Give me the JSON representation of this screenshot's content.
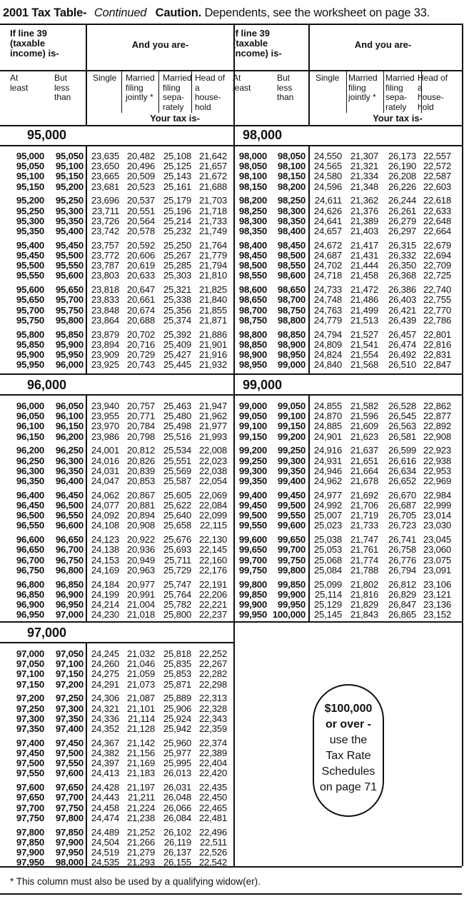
{
  "title": {
    "main": "2001 Tax Table-",
    "continued": "Continued",
    "caution": "Caution.",
    "caution_text": "Dependents, see the worksheet on page 33."
  },
  "header": {
    "income_label": "If line 39 (taxable income) is-",
    "and_you_are": "And you are-",
    "at_least": "At least",
    "but_less_than": "But less than",
    "single": "Single",
    "mfj": "Married filing jointly *",
    "mfs": "Married filing sepa- rately",
    "hoh": "Head of a house- hold",
    "your_tax_is": "Your tax is-"
  },
  "sections": [
    {
      "label": "95,000",
      "rows": [
        [
          "95,000",
          "95,050",
          "23,635",
          "20,482",
          "25,108",
          "21,642"
        ],
        [
          "95,050",
          "95,100",
          "23,650",
          "20,496",
          "25,125",
          "21,657"
        ],
        [
          "95,100",
          "95,150",
          "23,665",
          "20,509",
          "25,143",
          "21,672"
        ],
        [
          "95,150",
          "95,200",
          "23,681",
          "20,523",
          "25,161",
          "21,688"
        ],
        [
          "95,200",
          "95,250",
          "23,696",
          "20,537",
          "25,179",
          "21,703"
        ],
        [
          "95,250",
          "95,300",
          "23,711",
          "20,551",
          "25,196",
          "21,718"
        ],
        [
          "95,300",
          "95,350",
          "23,726",
          "20,564",
          "25,214",
          "21,733"
        ],
        [
          "95,350",
          "95,400",
          "23,742",
          "20,578",
          "25,232",
          "21,749"
        ],
        [
          "95,400",
          "95,450",
          "23,757",
          "20,592",
          "25,250",
          "21,764"
        ],
        [
          "95,450",
          "95,500",
          "23,772",
          "20,606",
          "25,267",
          "21,779"
        ],
        [
          "95,500",
          "95,550",
          "23,787",
          "20,619",
          "25,285",
          "21,794"
        ],
        [
          "95,550",
          "95,600",
          "23,803",
          "20,633",
          "25,303",
          "21,810"
        ],
        [
          "95,600",
          "95,650",
          "23,818",
          "20,647",
          "25,321",
          "21,825"
        ],
        [
          "95,650",
          "95,700",
          "23,833",
          "20,661",
          "25,338",
          "21,840"
        ],
        [
          "95,700",
          "95,750",
          "23,848",
          "20,674",
          "25,356",
          "21,855"
        ],
        [
          "95,750",
          "95,800",
          "23,864",
          "20,688",
          "25,374",
          "21,871"
        ],
        [
          "95,800",
          "95,850",
          "23,879",
          "20,702",
          "25,392",
          "21,886"
        ],
        [
          "95,850",
          "95,900",
          "23,894",
          "20,716",
          "25,409",
          "21,901"
        ],
        [
          "95,900",
          "95,950",
          "23,909",
          "20,729",
          "25,427",
          "21,916"
        ],
        [
          "95,950",
          "96,000",
          "23,925",
          "20,743",
          "25,445",
          "21,932"
        ]
      ]
    },
    {
      "label": "96,000",
      "rows": [
        [
          "96,000",
          "96,050",
          "23,940",
          "20,757",
          "25,463",
          "21,947"
        ],
        [
          "96,050",
          "96,100",
          "23,955",
          "20,771",
          "25,480",
          "21,962"
        ],
        [
          "96,100",
          "96,150",
          "23,970",
          "20,784",
          "25,498",
          "21,977"
        ],
        [
          "96,150",
          "96,200",
          "23,986",
          "20,798",
          "25,516",
          "21,993"
        ],
        [
          "96,200",
          "96,250",
          "24,001",
          "20,812",
          "25,534",
          "22,008"
        ],
        [
          "96,250",
          "96,300",
          "24,016",
          "20,826",
          "25,551",
          "22,023"
        ],
        [
          "96,300",
          "96,350",
          "24,031",
          "20,839",
          "25,569",
          "22,038"
        ],
        [
          "96,350",
          "96,400",
          "24,047",
          "20,853",
          "25,587",
          "22,054"
        ],
        [
          "96,400",
          "96,450",
          "24,062",
          "20,867",
          "25,605",
          "22,069"
        ],
        [
          "96,450",
          "96,500",
          "24,077",
          "20,881",
          "25,622",
          "22,084"
        ],
        [
          "96,500",
          "96,550",
          "24,092",
          "20,894",
          "25,640",
          "22,099"
        ],
        [
          "96,550",
          "96,600",
          "24,108",
          "20,908",
          "25,658",
          "22,115"
        ],
        [
          "96,600",
          "96,650",
          "24,123",
          "20,922",
          "25,676",
          "22,130"
        ],
        [
          "96,650",
          "96,700",
          "24,138",
          "20,936",
          "25,693",
          "22,145"
        ],
        [
          "96,700",
          "96,750",
          "24,153",
          "20,949",
          "25,711",
          "22,160"
        ],
        [
          "96,750",
          "96,800",
          "24,169",
          "20,963",
          "25,729",
          "22,176"
        ],
        [
          "96,800",
          "96,850",
          "24,184",
          "20,977",
          "25,747",
          "22,191"
        ],
        [
          "96,850",
          "96,900",
          "24,199",
          "20,991",
          "25,764",
          "22,206"
        ],
        [
          "96,900",
          "96,950",
          "24,214",
          "21,004",
          "25,782",
          "22,221"
        ],
        [
          "96,950",
          "97,000",
          "24,230",
          "21,018",
          "25,800",
          "22,237"
        ]
      ]
    },
    {
      "label": "97,000",
      "rows": [
        [
          "97,000",
          "97,050",
          "24,245",
          "21,032",
          "25,818",
          "22,252"
        ],
        [
          "97,050",
          "97,100",
          "24,260",
          "21,046",
          "25,835",
          "22,267"
        ],
        [
          "97,100",
          "97,150",
          "24,275",
          "21,059",
          "25,853",
          "22,282"
        ],
        [
          "97,150",
          "97,200",
          "24,291",
          "21,073",
          "25,871",
          "22,298"
        ],
        [
          "97,200",
          "97,250",
          "24,306",
          "21,087",
          "25,889",
          "22,313"
        ],
        [
          "97,250",
          "97,300",
          "24,321",
          "21,101",
          "25,906",
          "22,328"
        ],
        [
          "97,300",
          "97,350",
          "24,336",
          "21,114",
          "25,924",
          "22,343"
        ],
        [
          "97,350",
          "97,400",
          "24,352",
          "21,128",
          "25,942",
          "22,359"
        ],
        [
          "97,400",
          "97,450",
          "24,367",
          "21,142",
          "25,960",
          "22,374"
        ],
        [
          "97,450",
          "97,500",
          "24,382",
          "21,156",
          "25,977",
          "22,389"
        ],
        [
          "97,500",
          "97,550",
          "24,397",
          "21,169",
          "25,995",
          "22,404"
        ],
        [
          "97,550",
          "97,600",
          "24,413",
          "21,183",
          "26,013",
          "22,420"
        ],
        [
          "97,600",
          "97,650",
          "24,428",
          "21,197",
          "26,031",
          "22,435"
        ],
        [
          "97,650",
          "97,700",
          "24,443",
          "21,211",
          "26,048",
          "22,450"
        ],
        [
          "97,700",
          "97,750",
          "24,458",
          "21,224",
          "26,066",
          "22,465"
        ],
        [
          "97,750",
          "97,800",
          "24,474",
          "21,238",
          "26,084",
          "22,481"
        ],
        [
          "97,800",
          "97,850",
          "24,489",
          "21,252",
          "26,102",
          "22,496"
        ],
        [
          "97,850",
          "97,900",
          "24,504",
          "21,266",
          "26,119",
          "22,511"
        ],
        [
          "97,900",
          "97,950",
          "24,519",
          "21,279",
          "26,137",
          "22,526"
        ],
        [
          "97,950",
          "98,000",
          "24,535",
          "21,293",
          "26,155",
          "22,542"
        ]
      ]
    },
    {
      "label": "98,000",
      "rows": [
        [
          "98,000",
          "98,050",
          "24,550",
          "21,307",
          "26,173",
          "22,557"
        ],
        [
          "98,050",
          "98,100",
          "24,565",
          "21,321",
          "26,190",
          "22,572"
        ],
        [
          "98,100",
          "98,150",
          "24,580",
          "21,334",
          "26,208",
          "22,587"
        ],
        [
          "98,150",
          "98,200",
          "24,596",
          "21,348",
          "26,226",
          "22,603"
        ],
        [
          "98,200",
          "98,250",
          "24,611",
          "21,362",
          "26,244",
          "22,618"
        ],
        [
          "98,250",
          "98,300",
          "24,626",
          "21,376",
          "26,261",
          "22,633"
        ],
        [
          "98,300",
          "98,350",
          "24,641",
          "21,389",
          "26,279",
          "22,648"
        ],
        [
          "98,350",
          "98,400",
          "24,657",
          "21,403",
          "26,297",
          "22,664"
        ],
        [
          "98,400",
          "98,450",
          "24,672",
          "21,417",
          "26,315",
          "22,679"
        ],
        [
          "98,450",
          "98,500",
          "24,687",
          "21,431",
          "26,332",
          "22,694"
        ],
        [
          "98,500",
          "98,550",
          "24,702",
          "21,444",
          "26,350",
          "22,709"
        ],
        [
          "98,550",
          "98,600",
          "24,718",
          "21,458",
          "26,368",
          "22,725"
        ],
        [
          "98,600",
          "98,650",
          "24,733",
          "21,472",
          "26,386",
          "22,740"
        ],
        [
          "98,650",
          "98,700",
          "24,748",
          "21,486",
          "26,403",
          "22,755"
        ],
        [
          "98,700",
          "98,750",
          "24,763",
          "21,499",
          "26,421",
          "22,770"
        ],
        [
          "98,750",
          "98,800",
          "24,779",
          "21,513",
          "26,439",
          "22,786"
        ],
        [
          "98,800",
          "98,850",
          "24,794",
          "21,527",
          "26,457",
          "22,801"
        ],
        [
          "98,850",
          "98,900",
          "24,809",
          "21,541",
          "26,474",
          "22,816"
        ],
        [
          "98,900",
          "98,950",
          "24,824",
          "21,554",
          "26,492",
          "22,831"
        ],
        [
          "98,950",
          "99,000",
          "24,840",
          "21,568",
          "26,510",
          "22,847"
        ]
      ]
    },
    {
      "label": "99,000",
      "rows": [
        [
          "99,000",
          "99,050",
          "24,855",
          "21,582",
          "26,528",
          "22,862"
        ],
        [
          "99,050",
          "99,100",
          "24,870",
          "21,596",
          "26,545",
          "22,877"
        ],
        [
          "99,100",
          "99,150",
          "24,885",
          "21,609",
          "26,563",
          "22,892"
        ],
        [
          "99,150",
          "99,200",
          "24,901",
          "21,623",
          "26,581",
          "22,908"
        ],
        [
          "99,200",
          "99,250",
          "24,916",
          "21,637",
          "26,599",
          "22,923"
        ],
        [
          "99,250",
          "99,300",
          "24,931",
          "21,651",
          "26,616",
          "22,938"
        ],
        [
          "99,300",
          "99,350",
          "24,946",
          "21,664",
          "26,634",
          "22,953"
        ],
        [
          "99,350",
          "99,400",
          "24,962",
          "21,678",
          "26,652",
          "22,969"
        ],
        [
          "99,400",
          "99,450",
          "24,977",
          "21,692",
          "26,670",
          "22,984"
        ],
        [
          "99,450",
          "99,500",
          "24,992",
          "21,706",
          "26,687",
          "22,999"
        ],
        [
          "99,500",
          "99,550",
          "25,007",
          "21,719",
          "26,705",
          "23,014"
        ],
        [
          "99,550",
          "99,600",
          "25,023",
          "21,733",
          "26,723",
          "23,030"
        ],
        [
          "99,600",
          "99,650",
          "25,038",
          "21,747",
          "26,741",
          "23,045"
        ],
        [
          "99,650",
          "99,700",
          "25,053",
          "21,761",
          "26,758",
          "23,060"
        ],
        [
          "99,700",
          "99,750",
          "25,068",
          "21,774",
          "26,776",
          "23,075"
        ],
        [
          "99,750",
          "99,800",
          "25,084",
          "21,788",
          "26,794",
          "23,091"
        ],
        [
          "99,800",
          "99,850",
          "25,099",
          "21,802",
          "26,812",
          "23,106"
        ],
        [
          "99,850",
          "99,900",
          "25,114",
          "21,816",
          "26,829",
          "23,121"
        ],
        [
          "99,900",
          "99,950",
          "25,129",
          "21,829",
          "26,847",
          "23,136"
        ],
        [
          "99,950",
          "100,000",
          "25,145",
          "21,843",
          "26,865",
          "23,152"
        ]
      ]
    }
  ],
  "over_box": {
    "bold_line1": "$100,000",
    "bold_line2": "or over -",
    "line3": "use the",
    "line4": "Tax Rate",
    "line5": "Schedules",
    "line6": "on page 71"
  },
  "footnote": "* This column must also be used by a qualifying widow(er)."
}
